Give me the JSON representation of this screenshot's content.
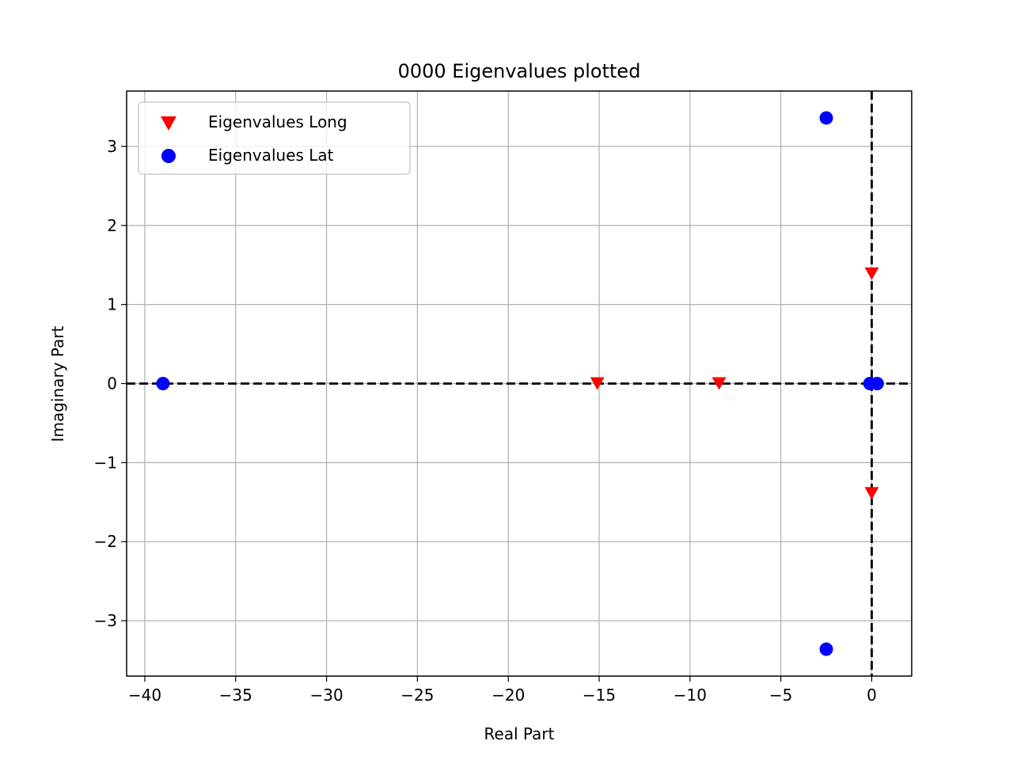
{
  "chart_data": {
    "type": "scatter",
    "title": "0000 Eigenvalues plotted",
    "xlabel": "Real Part",
    "ylabel": "Imaginary Part",
    "xlim": [
      -41,
      2.2
    ],
    "ylim": [
      -3.7,
      3.7
    ],
    "xticks": [
      -40,
      -35,
      -30,
      -25,
      -20,
      -15,
      -10,
      -5,
      0
    ],
    "yticks": [
      -3,
      -2,
      -1,
      0,
      1,
      2,
      3
    ],
    "xtick_labels": [
      "−40",
      "−35",
      "−30",
      "−25",
      "−20",
      "−15",
      "−10",
      "−5",
      "0"
    ],
    "ytick_labels": [
      "−3",
      "−2",
      "−1",
      "0",
      "1",
      "2",
      "3"
    ],
    "grid": true,
    "legend_position": "top-left",
    "reference_lines": {
      "x": 0,
      "y": 0,
      "style": "dashed",
      "color": "#000000"
    },
    "series": [
      {
        "name": "Eigenvalues Long",
        "marker": "triangle-down",
        "color": "#ff0000",
        "points": [
          {
            "x": -15.1,
            "y": 0.0
          },
          {
            "x": -8.4,
            "y": 0.0
          },
          {
            "x": 0.0,
            "y": 1.39
          },
          {
            "x": 0.0,
            "y": -1.39
          }
        ]
      },
      {
        "name": "Eigenvalues Lat",
        "marker": "circle",
        "color": "#0000ff",
        "points": [
          {
            "x": -39.0,
            "y": 0.0
          },
          {
            "x": -2.5,
            "y": 3.36
          },
          {
            "x": -2.5,
            "y": -3.36
          },
          {
            "x": -0.1,
            "y": 0.0
          },
          {
            "x": 0.3,
            "y": 0.0
          }
        ]
      }
    ]
  }
}
